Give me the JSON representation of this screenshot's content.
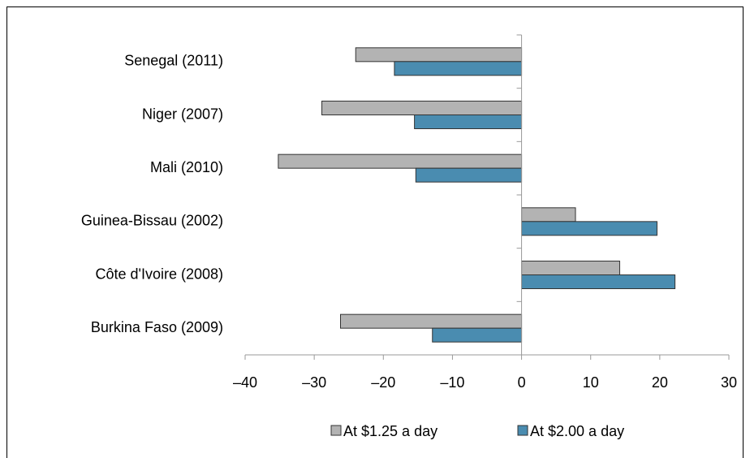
{
  "chart_data": {
    "type": "hbar",
    "categories": [
      "Senegal (2011)",
      "Niger (2007)",
      "Mali (2010)",
      "Guinea-Bissau (2002)",
      "Côte d'Ivoire (2008)",
      "Burkina Faso (2009)"
    ],
    "series": [
      {
        "name": "At $1.25 a day",
        "color": "#b3b3b3",
        "values": [
          -24,
          -28.9,
          -35.2,
          7.8,
          14.2,
          -26.2
        ]
      },
      {
        "name": "At $2.00 a day",
        "color": "#4a8cb0",
        "values": [
          -18.4,
          -15.5,
          -15.3,
          19.6,
          22.2,
          -12.9
        ]
      }
    ],
    "xlim": [
      -40,
      30
    ],
    "xticks": [
      {
        "value": -40,
        "label": "–40"
      },
      {
        "value": -30,
        "label": "–30"
      },
      {
        "value": -20,
        "label": "–20"
      },
      {
        "value": -10,
        "label": "–10"
      },
      0,
      10,
      20,
      30
    ],
    "legend": "bottom"
  }
}
